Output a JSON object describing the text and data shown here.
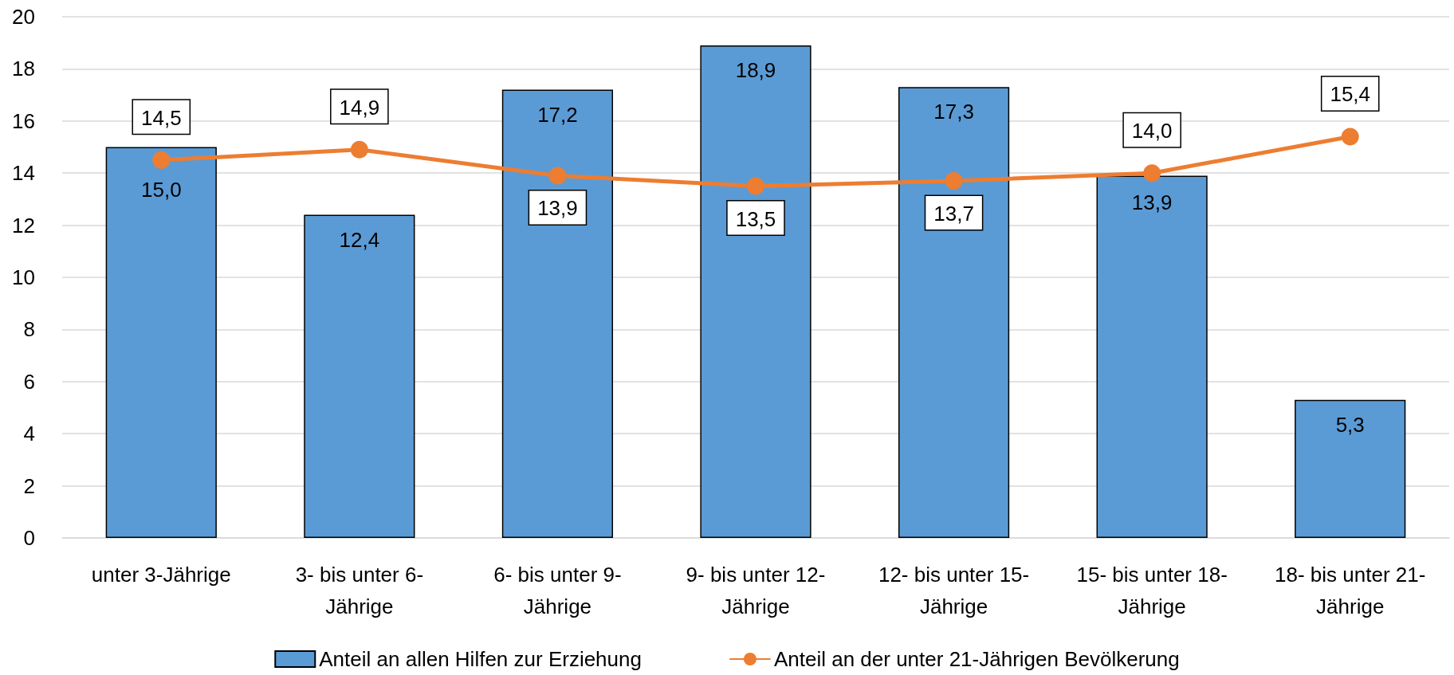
{
  "chart_data": {
    "type": "bar",
    "categories": [
      "unter 3-Jährige",
      "3- bis unter 6-Jährige",
      "6- bis unter 9-Jährige",
      "9- bis unter 12-Jährige",
      "12- bis unter 15-Jährige",
      "15- bis unter 18-Jährige",
      "18- bis unter 21-Jährige"
    ],
    "series": [
      {
        "name": "Anteil an allen Hilfen zur Erziehung",
        "color": "#5b9bd5",
        "values": [
          15.0,
          12.4,
          17.2,
          18.9,
          17.3,
          13.9,
          5.3
        ],
        "value_labels": [
          "15,0",
          "12,4",
          "17,2",
          "18,9",
          "17,3",
          "13,9",
          "5,3"
        ]
      },
      {
        "name": "Anteil an der unter 21-Jährigen Bevölkerung",
        "type": "line",
        "color": "#ed7d31",
        "values": [
          14.5,
          14.9,
          13.9,
          13.5,
          13.7,
          14.0,
          15.4
        ],
        "value_labels": [
          "14,5",
          "14,9",
          "13,9",
          "13,5",
          "13,7",
          "14,0",
          "15,4"
        ]
      }
    ],
    "ylim": [
      0,
      20
    ],
    "yticks": [
      0,
      2,
      4,
      6,
      8,
      10,
      12,
      14,
      16,
      18,
      20
    ],
    "grid": "y",
    "legend": "bottom",
    "marker": "circle",
    "line_style": "solid"
  }
}
